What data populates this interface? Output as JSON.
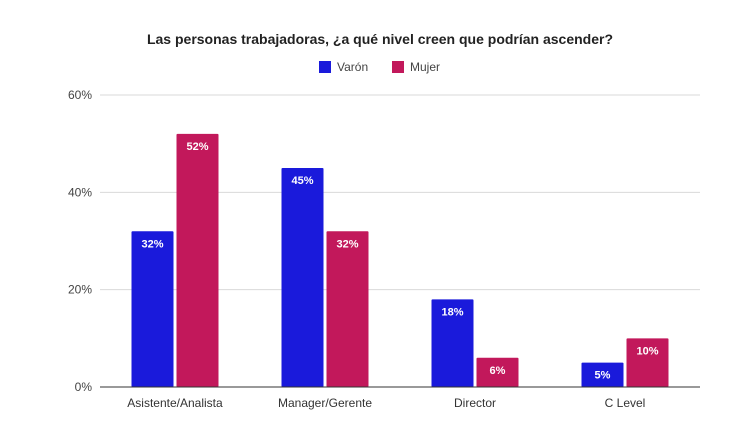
{
  "chart_data": {
    "type": "bar",
    "title": "Las personas trabajadoras, ¿a qué nivel creen que podrían ascender?",
    "categories": [
      "Asistente/Analista",
      "Manager/Gerente",
      "Director",
      "C Level"
    ],
    "series": [
      {
        "name": "Varón",
        "color": "#1a1adb",
        "values": [
          32,
          45,
          18,
          5
        ],
        "labels": [
          "32%",
          "45%",
          "18%",
          "5%"
        ]
      },
      {
        "name": "Mujer",
        "color": "#c2185b",
        "values": [
          52,
          32,
          6,
          10
        ],
        "labels": [
          "52%",
          "32%",
          "6%",
          "10%"
        ]
      }
    ],
    "ylim": [
      0,
      60
    ],
    "yticks": [
      0,
      20,
      40,
      60
    ],
    "ytick_labels": [
      "0%",
      "20%",
      "40%",
      "60%"
    ],
    "xlabel": "",
    "ylabel": "",
    "grid": true,
    "legend_position": "top-center"
  }
}
